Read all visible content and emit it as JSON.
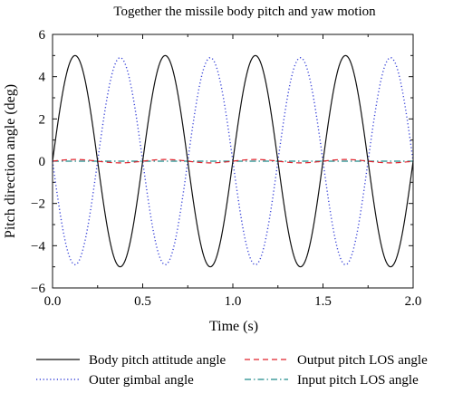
{
  "chart_data": {
    "type": "line",
    "title": "Together the missile body pitch and yaw motion",
    "xlabel": "Time (s)",
    "ylabel": "Pitch direction angle (deg)",
    "xlim": [
      0,
      2
    ],
    "ylim": [
      -6,
      6
    ],
    "xticks": [
      "0.0",
      "0.5",
      "1.0",
      "1.5",
      "2.0"
    ],
    "yticks": [
      "6",
      "4",
      "2",
      "0",
      "−2",
      "−4",
      "−6"
    ],
    "grid": false,
    "legend_position": "bottom",
    "series": [
      {
        "name": "Body pitch attitude angle",
        "color": "#111111",
        "style": "solid",
        "x": [
          0.0,
          0.125,
          0.25,
          0.375,
          0.5,
          0.625,
          0.75,
          0.875,
          1.0,
          1.125,
          1.25,
          1.375,
          1.5,
          1.625,
          1.75,
          1.875,
          2.0
        ],
        "y": [
          0,
          5,
          0,
          -5,
          0,
          5,
          0,
          -5,
          0,
          5,
          0,
          -5,
          0,
          5,
          0,
          -5,
          0
        ]
      },
      {
        "name": "Outer gimbal angle",
        "color": "#3a45d8",
        "style": "dotted",
        "x": [
          0.0,
          0.125,
          0.25,
          0.375,
          0.5,
          0.625,
          0.75,
          0.875,
          1.0,
          1.125,
          1.25,
          1.375,
          1.5,
          1.625,
          1.75,
          1.875,
          2.0
        ],
        "y": [
          0,
          -4.9,
          0,
          4.9,
          0,
          -4.9,
          0,
          4.9,
          0,
          -4.9,
          0,
          4.9,
          0,
          -4.9,
          0,
          4.9,
          0
        ]
      },
      {
        "name": "Output pitch LOS angle",
        "color": "#e0202a",
        "style": "dashed",
        "x": [
          0.0,
          0.125,
          0.25,
          0.375,
          0.5,
          0.625,
          0.75,
          0.875,
          1.0,
          1.125,
          1.25,
          1.375,
          1.5,
          1.625,
          1.75,
          1.875,
          2.0
        ],
        "y": [
          0,
          0.08,
          0,
          -0.08,
          0,
          0.08,
          0,
          -0.08,
          0,
          0.08,
          0,
          -0.08,
          0,
          0.08,
          0,
          -0.08,
          0
        ]
      },
      {
        "name": "Input pitch LOS angle",
        "color": "#1f8a8a",
        "style": "dashdot",
        "x": [
          0.0,
          2.0
        ],
        "y": [
          0,
          0
        ]
      }
    ]
  }
}
